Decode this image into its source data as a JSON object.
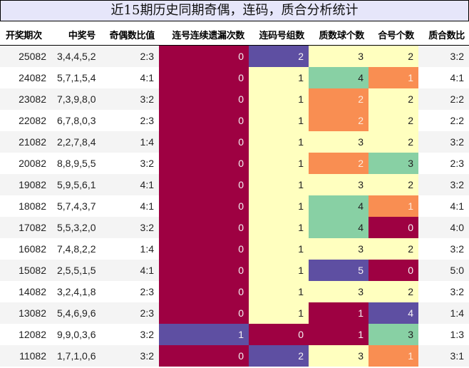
{
  "title": "近15期历史同期奇偶，连码，质合分析统计",
  "colors": {
    "crimson": "#9e0142",
    "purple": "#5e4fa2",
    "yellow": "#ffffbf",
    "green": "#88d0a4",
    "orange": "#f98e52",
    "stripe": "#f4f4f4",
    "title_bg": "#e6e6fa"
  },
  "headers": [
    "开奖期次",
    "中奖号",
    "奇偶数比值",
    "连号连续遗漏次数",
    "连码号组数",
    "质数球个数",
    "合号个数",
    "质合数比"
  ],
  "rows": [
    {
      "period": "25082",
      "numbers": "3,4,4,5,2",
      "odd_even": "2:3",
      "consec_miss": "0",
      "consec_groups": "2",
      "prime_count": "3",
      "composite_count": "2",
      "prime_comp": "3:2",
      "c4": "crimson",
      "c5": "purple",
      "c6": "yellow",
      "c7": "yellow"
    },
    {
      "period": "24082",
      "numbers": "5,7,1,5,4",
      "odd_even": "4:1",
      "consec_miss": "0",
      "consec_groups": "1",
      "prime_count": "4",
      "composite_count": "1",
      "prime_comp": "4:1",
      "c4": "crimson",
      "c5": "yellow",
      "c6": "green",
      "c7": "orange"
    },
    {
      "period": "23082",
      "numbers": "7,3,9,8,0",
      "odd_even": "3:2",
      "consec_miss": "0",
      "consec_groups": "1",
      "prime_count": "2",
      "composite_count": "2",
      "prime_comp": "2:2",
      "c4": "crimson",
      "c5": "yellow",
      "c6": "orange",
      "c7": "yellow"
    },
    {
      "period": "22082",
      "numbers": "6,7,8,0,3",
      "odd_even": "2:3",
      "consec_miss": "0",
      "consec_groups": "1",
      "prime_count": "2",
      "composite_count": "2",
      "prime_comp": "2:2",
      "c4": "crimson",
      "c5": "yellow",
      "c6": "orange",
      "c7": "yellow"
    },
    {
      "period": "21082",
      "numbers": "2,2,7,8,4",
      "odd_even": "1:4",
      "consec_miss": "0",
      "consec_groups": "1",
      "prime_count": "3",
      "composite_count": "2",
      "prime_comp": "3:2",
      "c4": "crimson",
      "c5": "yellow",
      "c6": "yellow",
      "c7": "yellow"
    },
    {
      "period": "20082",
      "numbers": "8,8,9,5,5",
      "odd_even": "3:2",
      "consec_miss": "0",
      "consec_groups": "1",
      "prime_count": "2",
      "composite_count": "3",
      "prime_comp": "2:3",
      "c4": "crimson",
      "c5": "yellow",
      "c6": "orange",
      "c7": "green"
    },
    {
      "period": "19082",
      "numbers": "5,9,5,6,1",
      "odd_even": "4:1",
      "consec_miss": "0",
      "consec_groups": "1",
      "prime_count": "3",
      "composite_count": "2",
      "prime_comp": "3:2",
      "c4": "crimson",
      "c5": "yellow",
      "c6": "yellow",
      "c7": "yellow"
    },
    {
      "period": "18082",
      "numbers": "5,7,4,3,7",
      "odd_even": "4:1",
      "consec_miss": "0",
      "consec_groups": "1",
      "prime_count": "4",
      "composite_count": "1",
      "prime_comp": "4:1",
      "c4": "crimson",
      "c5": "yellow",
      "c6": "green",
      "c7": "orange"
    },
    {
      "period": "17082",
      "numbers": "5,5,3,2,0",
      "odd_even": "3:2",
      "consec_miss": "0",
      "consec_groups": "1",
      "prime_count": "4",
      "composite_count": "0",
      "prime_comp": "4:0",
      "c4": "crimson",
      "c5": "yellow",
      "c6": "green",
      "c7": "crimson"
    },
    {
      "period": "16082",
      "numbers": "7,4,8,2,2",
      "odd_even": "1:4",
      "consec_miss": "0",
      "consec_groups": "1",
      "prime_count": "3",
      "composite_count": "2",
      "prime_comp": "3:2",
      "c4": "crimson",
      "c5": "yellow",
      "c6": "yellow",
      "c7": "yellow"
    },
    {
      "period": "15082",
      "numbers": "2,5,5,1,5",
      "odd_even": "4:1",
      "consec_miss": "0",
      "consec_groups": "1",
      "prime_count": "5",
      "composite_count": "0",
      "prime_comp": "5:0",
      "c4": "crimson",
      "c5": "yellow",
      "c6": "purple",
      "c7": "crimson"
    },
    {
      "period": "14082",
      "numbers": "3,2,4,1,8",
      "odd_even": "2:3",
      "consec_miss": "0",
      "consec_groups": "1",
      "prime_count": "3",
      "composite_count": "2",
      "prime_comp": "3:2",
      "c4": "crimson",
      "c5": "yellow",
      "c6": "yellow",
      "c7": "yellow"
    },
    {
      "period": "13082",
      "numbers": "5,4,6,9,6",
      "odd_even": "2:3",
      "consec_miss": "0",
      "consec_groups": "1",
      "prime_count": "1",
      "composite_count": "4",
      "prime_comp": "1:4",
      "c4": "crimson",
      "c5": "yellow",
      "c6": "crimson",
      "c7": "purple"
    },
    {
      "period": "12082",
      "numbers": "9,9,0,3,6",
      "odd_even": "3:2",
      "consec_miss": "1",
      "consec_groups": "0",
      "prime_count": "1",
      "composite_count": "3",
      "prime_comp": "1:3",
      "c4": "purple",
      "c5": "crimson",
      "c6": "crimson",
      "c7": "green"
    },
    {
      "period": "11082",
      "numbers": "1,7,1,0,6",
      "odd_even": "3:2",
      "consec_miss": "0",
      "consec_groups": "2",
      "prime_count": "3",
      "composite_count": "1",
      "prime_comp": "3:1",
      "c4": "crimson",
      "c5": "purple",
      "c6": "yellow",
      "c7": "orange"
    }
  ]
}
